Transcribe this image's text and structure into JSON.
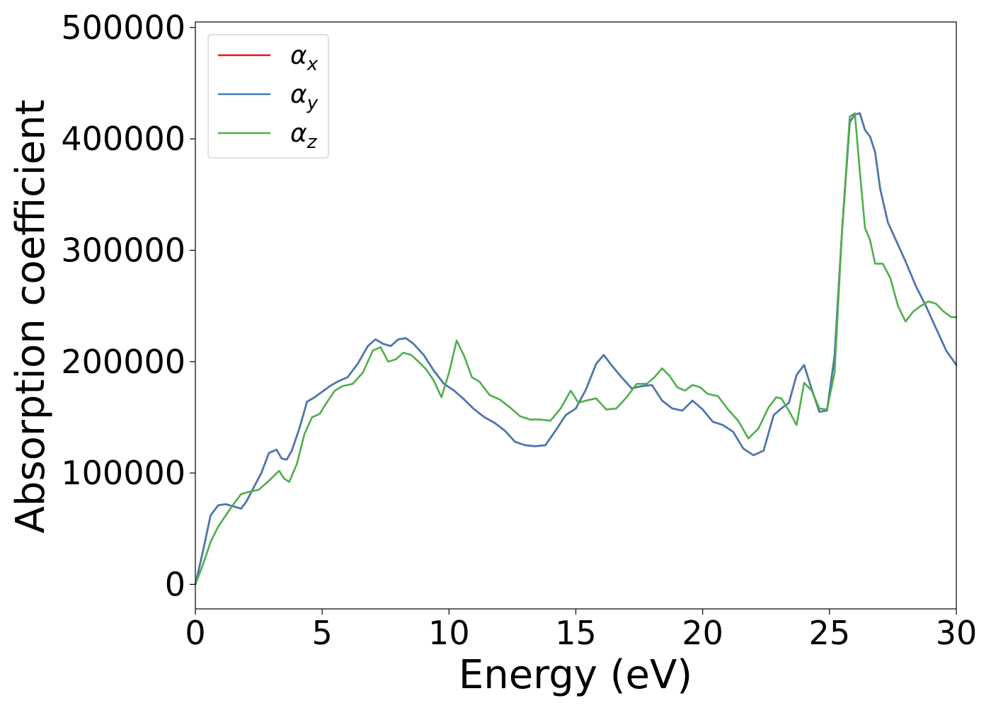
{
  "chart_data": {
    "type": "line",
    "xlabel": "Energy (eV)",
    "ylabel": "Absorption coefficient",
    "xlim": [
      0,
      30
    ],
    "ylim": [
      -22000,
      505000
    ],
    "xticks": [
      0,
      5,
      10,
      15,
      20,
      25,
      30
    ],
    "yticks": [
      0,
      100000,
      200000,
      300000,
      400000,
      500000
    ],
    "grid": false,
    "legend_position": "top-left",
    "series": [
      {
        "name": "αx",
        "label_main": "α",
        "label_sub": "x",
        "color": "#e41a1c",
        "x": [
          0,
          0.3,
          0.6,
          0.9,
          1.2,
          1.5,
          1.8,
          2.0,
          2.3,
          2.6,
          2.9,
          3.2,
          3.4,
          3.6,
          3.8,
          4.1,
          4.4,
          4.7,
          5.0,
          5.3,
          5.6,
          6.0,
          6.4,
          6.8,
          7.1,
          7.4,
          7.7,
          8.0,
          8.3,
          8.6,
          9.0,
          9.4,
          9.8,
          10.2,
          10.6,
          11.0,
          11.4,
          11.8,
          12.2,
          12.6,
          13.0,
          13.4,
          13.8,
          14.2,
          14.6,
          15.0,
          15.4,
          15.8,
          16.1,
          16.4,
          16.8,
          17.2,
          17.6,
          18.0,
          18.4,
          18.8,
          19.2,
          19.6,
          20.0,
          20.4,
          20.8,
          21.2,
          21.6,
          22.0,
          22.4,
          22.8,
          23.1,
          23.4,
          23.7,
          24.0,
          24.3,
          24.6,
          24.9,
          25.2,
          25.5,
          25.8,
          26.0,
          26.2,
          26.4,
          26.6,
          26.8,
          27.0,
          27.3,
          27.6,
          28.0,
          28.4,
          28.8,
          29.2,
          29.6,
          30.0
        ],
        "y": [
          0,
          30000,
          62000,
          71000,
          72000,
          70000,
          68000,
          74000,
          87000,
          100000,
          118000,
          121000,
          113000,
          112000,
          120000,
          140000,
          164000,
          168000,
          173000,
          178000,
          182000,
          186000,
          198000,
          214000,
          220000,
          216000,
          214000,
          220000,
          221000,
          216000,
          206000,
          192000,
          180000,
          174000,
          166000,
          157000,
          150000,
          145000,
          138000,
          128000,
          125000,
          124000,
          125000,
          138000,
          152000,
          158000,
          175000,
          198000,
          206000,
          197000,
          186000,
          176000,
          178000,
          179000,
          165000,
          158000,
          156000,
          165000,
          157000,
          146000,
          143000,
          137000,
          122000,
          116000,
          120000,
          152000,
          158000,
          163000,
          188000,
          197000,
          175000,
          155000,
          156000,
          205000,
          320000,
          415000,
          422000,
          423000,
          408000,
          402000,
          388000,
          355000,
          325000,
          310000,
          290000,
          268000,
          250000,
          230000,
          210000,
          197000
        ]
      },
      {
        "name": "αy",
        "label_main": "α",
        "label_sub": "y",
        "color": "#4479b4",
        "x": [
          0,
          0.3,
          0.6,
          0.9,
          1.2,
          1.5,
          1.8,
          2.0,
          2.3,
          2.6,
          2.9,
          3.2,
          3.4,
          3.6,
          3.8,
          4.1,
          4.4,
          4.7,
          5.0,
          5.3,
          5.6,
          6.0,
          6.4,
          6.8,
          7.1,
          7.4,
          7.7,
          8.0,
          8.3,
          8.6,
          9.0,
          9.4,
          9.8,
          10.2,
          10.6,
          11.0,
          11.4,
          11.8,
          12.2,
          12.6,
          13.0,
          13.4,
          13.8,
          14.2,
          14.6,
          15.0,
          15.4,
          15.8,
          16.1,
          16.4,
          16.8,
          17.2,
          17.6,
          18.0,
          18.4,
          18.8,
          19.2,
          19.6,
          20.0,
          20.4,
          20.8,
          21.2,
          21.6,
          22.0,
          22.4,
          22.8,
          23.1,
          23.4,
          23.7,
          24.0,
          24.3,
          24.6,
          24.9,
          25.2,
          25.5,
          25.8,
          26.0,
          26.2,
          26.4,
          26.6,
          26.8,
          27.0,
          27.3,
          27.6,
          28.0,
          28.4,
          28.8,
          29.2,
          29.6,
          30.0
        ],
        "y": [
          0,
          30000,
          62000,
          71000,
          72000,
          70000,
          68000,
          74000,
          87000,
          100000,
          118000,
          121000,
          113000,
          112000,
          120000,
          140000,
          164000,
          168000,
          173000,
          178000,
          182000,
          186000,
          198000,
          214000,
          220000,
          216000,
          214000,
          220000,
          221000,
          216000,
          206000,
          192000,
          180000,
          174000,
          166000,
          157000,
          150000,
          145000,
          138000,
          128000,
          125000,
          124000,
          125000,
          138000,
          152000,
          158000,
          175000,
          198000,
          206000,
          197000,
          186000,
          176000,
          178000,
          179000,
          165000,
          158000,
          156000,
          165000,
          157000,
          146000,
          143000,
          137000,
          122000,
          116000,
          120000,
          152000,
          158000,
          163000,
          188000,
          197000,
          175000,
          155000,
          156000,
          205000,
          320000,
          415000,
          422000,
          423000,
          408000,
          402000,
          388000,
          355000,
          325000,
          310000,
          290000,
          268000,
          250000,
          230000,
          210000,
          197000
        ]
      },
      {
        "name": "αz",
        "label_main": "α",
        "label_sub": "z",
        "color": "#4daf4a",
        "x": [
          0,
          0.3,
          0.6,
          0.9,
          1.2,
          1.5,
          1.8,
          2.1,
          2.5,
          2.9,
          3.3,
          3.5,
          3.7,
          4.0,
          4.3,
          4.6,
          4.9,
          5.2,
          5.5,
          5.8,
          6.2,
          6.6,
          7.0,
          7.3,
          7.6,
          7.9,
          8.2,
          8.5,
          8.8,
          9.1,
          9.4,
          9.7,
          10.0,
          10.3,
          10.6,
          10.9,
          11.2,
          11.6,
          12.0,
          12.4,
          12.8,
          13.2,
          13.6,
          14.0,
          14.4,
          14.8,
          15.1,
          15.4,
          15.8,
          16.2,
          16.6,
          17.0,
          17.4,
          17.8,
          18.1,
          18.4,
          18.7,
          19.0,
          19.3,
          19.6,
          19.9,
          20.2,
          20.6,
          21.0,
          21.4,
          21.8,
          22.2,
          22.6,
          22.9,
          23.1,
          23.4,
          23.7,
          24.0,
          24.3,
          24.6,
          24.9,
          25.2,
          25.5,
          25.8,
          26.0,
          26.2,
          26.4,
          26.6,
          26.8,
          27.1,
          27.4,
          27.7,
          28.0,
          28.3,
          28.6,
          28.9,
          29.2,
          29.5,
          29.8,
          30.0
        ],
        "y": [
          0,
          18000,
          38000,
          52000,
          62000,
          72000,
          81000,
          83000,
          85000,
          93000,
          102000,
          95000,
          92000,
          108000,
          135000,
          150000,
          153000,
          164000,
          174000,
          178000,
          180000,
          190000,
          210000,
          213000,
          200000,
          202000,
          208000,
          206000,
          200000,
          193000,
          183000,
          168000,
          190000,
          219000,
          205000,
          186000,
          182000,
          170000,
          166000,
          159000,
          151000,
          148000,
          148000,
          147000,
          158000,
          174000,
          163000,
          165000,
          167000,
          157000,
          158000,
          168000,
          180000,
          180000,
          186000,
          194000,
          187000,
          177000,
          174000,
          179000,
          177000,
          171000,
          169000,
          157000,
          147000,
          131000,
          140000,
          159000,
          168000,
          167000,
          156000,
          143000,
          181000,
          174000,
          158000,
          157000,
          190000,
          320000,
          420000,
          423000,
          370000,
          320000,
          309000,
          288000,
          288000,
          275000,
          250000,
          236000,
          245000,
          250000,
          254000,
          252000,
          245000,
          240000,
          240000
        ]
      }
    ]
  }
}
